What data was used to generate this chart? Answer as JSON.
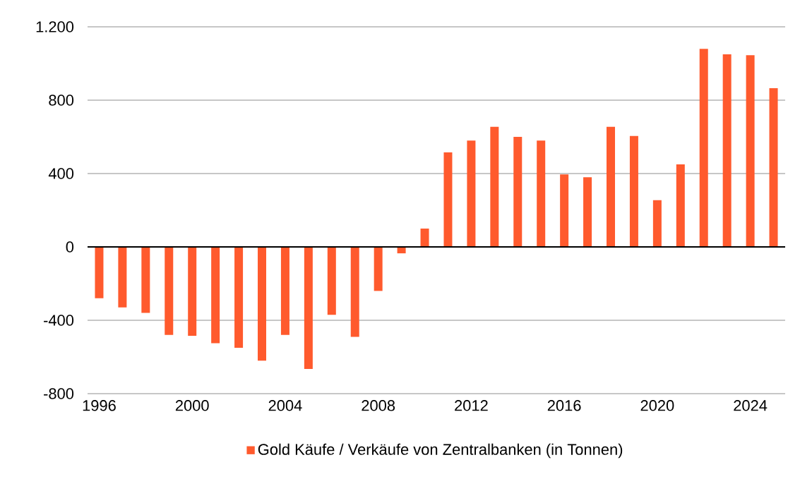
{
  "chart_data": {
    "type": "bar",
    "x": [
      1996,
      1997,
      1998,
      1999,
      2000,
      2001,
      2002,
      2003,
      2004,
      2005,
      2006,
      2007,
      2008,
      2009,
      2010,
      2011,
      2012,
      2013,
      2014,
      2015,
      2016,
      2017,
      2018,
      2019,
      2020,
      2021,
      2022,
      2023,
      2024,
      2025
    ],
    "series": [
      {
        "name": "Gold Käufe / Verkäufe von Zentralbanken (in Tonnen)",
        "color": "#ff5a2d",
        "values": [
          -280,
          -330,
          -360,
          -480,
          -485,
          -525,
          -550,
          -620,
          -480,
          -665,
          -370,
          -490,
          -240,
          -35,
          100,
          515,
          580,
          655,
          600,
          580,
          395,
          380,
          655,
          605,
          255,
          450,
          1080,
          1050,
          1045,
          865
        ]
      }
    ],
    "xlim": [
      1995.5,
      2025.5
    ],
    "xticks": [
      1996,
      2000,
      2004,
      2008,
      2012,
      2016,
      2020,
      2024
    ],
    "ylim": [
      -800,
      1200
    ],
    "yticks": [
      {
        "value": -800,
        "label": "-800"
      },
      {
        "value": -400,
        "label": "-400"
      },
      0,
      400,
      800,
      {
        "value": 1200,
        "label": "1.200"
      }
    ],
    "grid": "y",
    "legend": "bottom"
  }
}
